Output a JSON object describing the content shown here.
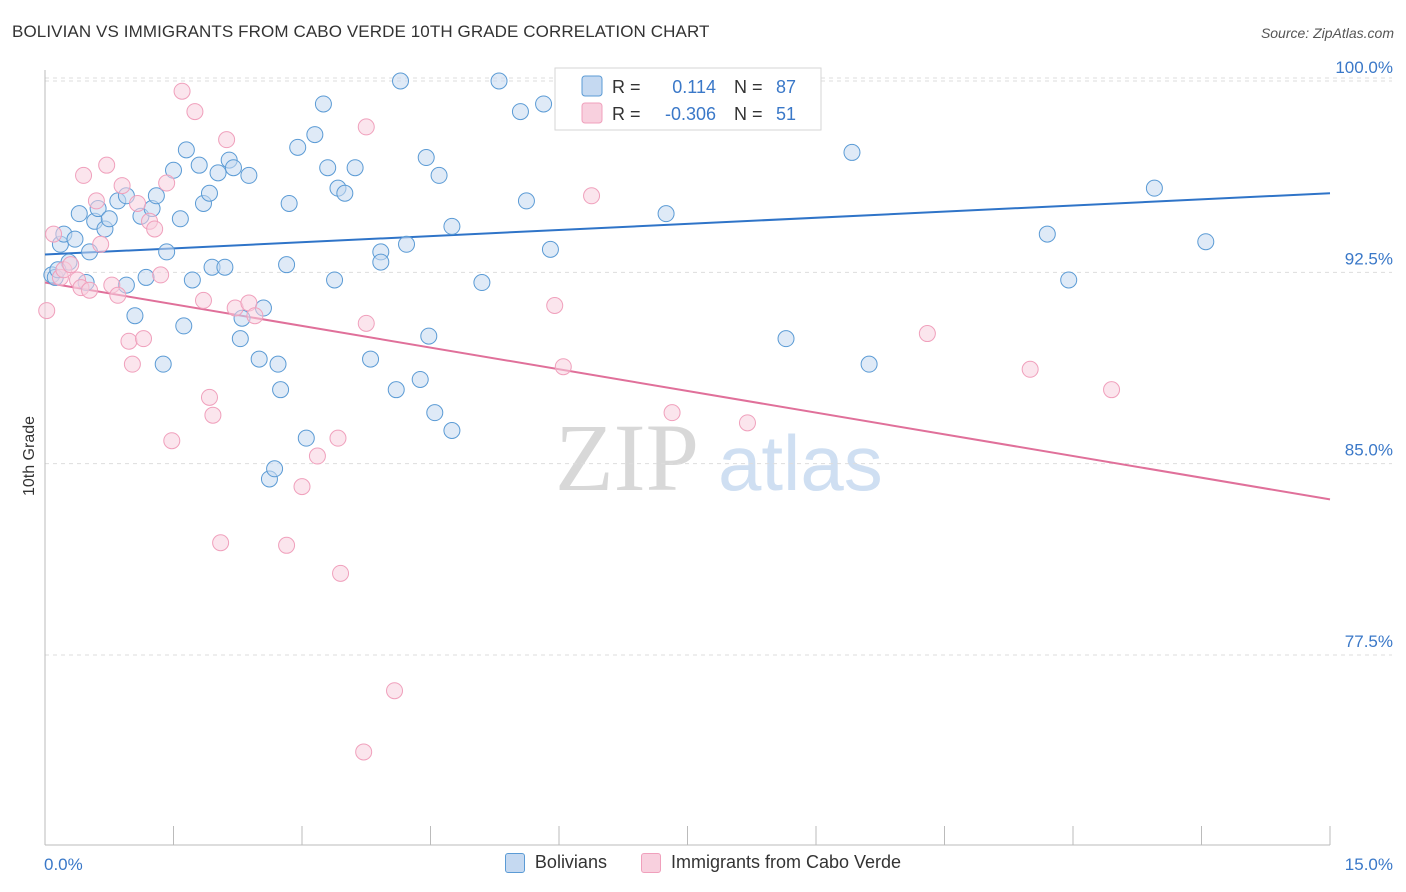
{
  "title": "BOLIVIAN VS IMMIGRANTS FROM CABO VERDE 10TH GRADE CORRELATION CHART",
  "source": "Source: ZipAtlas.com",
  "watermark": {
    "zip": "ZIP",
    "atlas": "atlas"
  },
  "colors": {
    "blue": "#5b9bd5",
    "blue_fill": "#c5d9f1",
    "blue_line": "#2f74c8",
    "blue_text": "#3a78c8",
    "pink": "#f0a0bc",
    "pink_fill": "#f8d0de",
    "pink_line": "#e0709a",
    "grid": "#dddddd"
  },
  "legend_box": {
    "rows": [
      {
        "r_label": "R =",
        "r_value": "0.114",
        "n_label": "N =",
        "n_value": "87"
      },
      {
        "r_label": "R =",
        "r_value": "-0.306",
        "n_label": "N =",
        "n_value": "51"
      }
    ]
  },
  "bottom_legend": {
    "items": [
      {
        "label": "Bolivians"
      },
      {
        "label": "Immigrants from Cabo Verde"
      }
    ]
  },
  "chart_data": {
    "type": "scatter",
    "title": "BOLIVIAN VS IMMIGRANTS FROM CABO VERDE 10TH GRADE CORRELATION CHART",
    "xlabel": "",
    "ylabel": "10th Grade",
    "xlim": [
      0.0,
      15.0
    ],
    "ylim": [
      70.0,
      100.9
    ],
    "x_tick_labels": [
      "0.0%",
      "15.0%"
    ],
    "y_ticks": [
      77.5,
      85.0,
      92.5,
      100.0
    ],
    "y_tick_labels": [
      "77.5%",
      "85.0%",
      "92.5%",
      "100.0%"
    ],
    "grid": true,
    "legend_position": "top-center",
    "series": [
      {
        "name": "Bolivians",
        "color": "#5b9bd5",
        "R": 0.114,
        "N": 87,
        "trend": {
          "x": [
            0.0,
            15.0
          ],
          "y": [
            93.2,
            95.6
          ]
        },
        "points": [
          [
            0.08,
            92.4
          ],
          [
            0.12,
            92.3
          ],
          [
            0.18,
            93.6
          ],
          [
            0.22,
            94.0
          ],
          [
            0.28,
            92.9
          ],
          [
            0.35,
            93.8
          ],
          [
            0.4,
            94.8
          ],
          [
            0.48,
            92.1
          ],
          [
            0.52,
            93.3
          ],
          [
            0.58,
            94.5
          ],
          [
            0.62,
            95.0
          ],
          [
            0.7,
            94.2
          ],
          [
            0.75,
            94.6
          ],
          [
            0.85,
            95.3
          ],
          [
            0.95,
            95.5
          ],
          [
            0.95,
            92.0
          ],
          [
            1.05,
            90.8
          ],
          [
            1.12,
            94.7
          ],
          [
            1.18,
            92.3
          ],
          [
            1.25,
            95.0
          ],
          [
            1.3,
            95.5
          ],
          [
            1.38,
            88.9
          ],
          [
            1.42,
            93.3
          ],
          [
            1.5,
            96.5
          ],
          [
            1.58,
            94.6
          ],
          [
            1.62,
            90.4
          ],
          [
            1.65,
            97.3
          ],
          [
            1.72,
            92.2
          ],
          [
            1.8,
            96.7
          ],
          [
            1.85,
            95.2
          ],
          [
            1.92,
            95.6
          ],
          [
            1.95,
            92.7
          ],
          [
            2.02,
            96.4
          ],
          [
            2.1,
            92.7
          ],
          [
            2.15,
            96.9
          ],
          [
            2.2,
            96.6
          ],
          [
            2.28,
            89.9
          ],
          [
            2.3,
            90.7
          ],
          [
            2.38,
            96.3
          ],
          [
            2.5,
            89.1
          ],
          [
            2.55,
            91.1
          ],
          [
            2.62,
            84.4
          ],
          [
            2.68,
            84.8
          ],
          [
            2.72,
            88.9
          ],
          [
            2.75,
            87.9
          ],
          [
            2.82,
            92.8
          ],
          [
            2.85,
            95.2
          ],
          [
            2.95,
            97.4
          ],
          [
            3.05,
            86.0
          ],
          [
            3.15,
            97.9
          ],
          [
            3.25,
            99.1
          ],
          [
            3.3,
            96.6
          ],
          [
            3.38,
            92.2
          ],
          [
            3.42,
            95.8
          ],
          [
            3.5,
            95.6
          ],
          [
            3.62,
            96.6
          ],
          [
            3.8,
            89.1
          ],
          [
            3.92,
            93.3
          ],
          [
            3.92,
            92.9
          ],
          [
            4.1,
            87.9
          ],
          [
            4.15,
            100.0
          ],
          [
            4.22,
            93.6
          ],
          [
            4.38,
            88.3
          ],
          [
            4.45,
            97.0
          ],
          [
            4.48,
            90.0
          ],
          [
            4.55,
            87.0
          ],
          [
            4.6,
            96.3
          ],
          [
            4.75,
            94.3
          ],
          [
            4.75,
            86.3
          ],
          [
            5.1,
            92.1
          ],
          [
            5.3,
            100.0
          ],
          [
            5.55,
            98.8
          ],
          [
            5.62,
            95.3
          ],
          [
            5.82,
            99.1
          ],
          [
            5.9,
            93.4
          ],
          [
            6.05,
            99.6
          ],
          [
            7.25,
            94.8
          ],
          [
            7.9,
            99.6
          ],
          [
            8.6,
            100.0
          ],
          [
            8.65,
            89.9
          ],
          [
            9.42,
            97.2
          ],
          [
            9.62,
            88.9
          ],
          [
            11.7,
            94.0
          ],
          [
            11.95,
            92.2
          ],
          [
            12.95,
            95.8
          ],
          [
            13.55,
            93.7
          ],
          [
            0.15,
            92.6
          ]
        ]
      },
      {
        "name": "Immigrants from Cabo Verde",
        "color": "#f0a0bc",
        "R": -0.306,
        "N": 51,
        "trend": {
          "x": [
            0.0,
            15.0
          ],
          "y": [
            92.1,
            83.6
          ]
        },
        "points": [
          [
            0.02,
            91.0
          ],
          [
            0.1,
            94.0
          ],
          [
            0.18,
            92.3
          ],
          [
            0.22,
            92.6
          ],
          [
            0.3,
            92.8
          ],
          [
            0.38,
            92.2
          ],
          [
            0.42,
            91.9
          ],
          [
            0.45,
            96.3
          ],
          [
            0.52,
            91.8
          ],
          [
            0.6,
            95.3
          ],
          [
            0.65,
            93.6
          ],
          [
            0.72,
            96.7
          ],
          [
            0.78,
            92.0
          ],
          [
            0.85,
            91.6
          ],
          [
            0.9,
            95.9
          ],
          [
            0.98,
            89.8
          ],
          [
            1.02,
            88.9
          ],
          [
            1.08,
            95.2
          ],
          [
            1.15,
            89.9
          ],
          [
            1.22,
            94.5
          ],
          [
            1.28,
            94.2
          ],
          [
            1.35,
            92.4
          ],
          [
            1.42,
            96.0
          ],
          [
            1.48,
            85.9
          ],
          [
            1.6,
            99.6
          ],
          [
            1.75,
            98.8
          ],
          [
            1.85,
            91.4
          ],
          [
            1.92,
            87.6
          ],
          [
            1.96,
            86.9
          ],
          [
            2.05,
            81.9
          ],
          [
            2.12,
            97.7
          ],
          [
            2.22,
            91.1
          ],
          [
            2.38,
            91.3
          ],
          [
            2.45,
            90.8
          ],
          [
            2.82,
            81.8
          ],
          [
            3.0,
            84.1
          ],
          [
            3.18,
            85.3
          ],
          [
            3.42,
            86.0
          ],
          [
            3.45,
            80.7
          ],
          [
            3.75,
            90.5
          ],
          [
            3.75,
            98.2
          ],
          [
            3.72,
            73.7
          ],
          [
            4.08,
            76.1
          ],
          [
            5.95,
            91.2
          ],
          [
            6.05,
            88.8
          ],
          [
            6.38,
            95.5
          ],
          [
            7.32,
            87.0
          ],
          [
            8.2,
            86.6
          ],
          [
            10.3,
            90.1
          ],
          [
            11.5,
            88.7
          ],
          [
            12.45,
            87.9
          ]
        ]
      }
    ]
  }
}
